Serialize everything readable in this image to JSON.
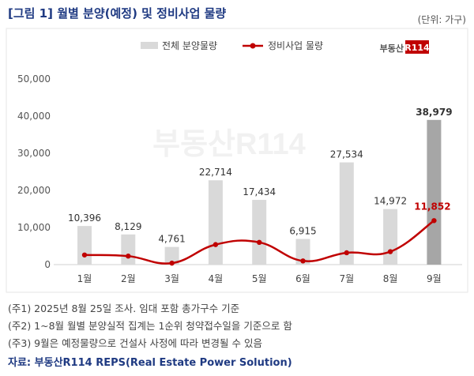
{
  "title": "[그림 1] 월별 분양(예정) 및 정비사업 물량",
  "unit": "(단위: 가구)",
  "logo_text": "부동산R114",
  "watermark_text": "부동산R114",
  "chart_data": {
    "type": "bar",
    "categories": [
      "1월",
      "2월",
      "3월",
      "4월",
      "5월",
      "6월",
      "7월",
      "8월",
      "9월"
    ],
    "series": [
      {
        "name": "전체 분양물량",
        "type": "bar",
        "values": [
          10396,
          8129,
          4761,
          22714,
          17434,
          6915,
          27534,
          14972,
          38979
        ],
        "color": "#d9d9d9",
        "highlight_color": "#a6a6a6"
      },
      {
        "name": "정비사업 물량",
        "type": "line",
        "values": [
          2600,
          2300,
          400,
          5400,
          6000,
          1000,
          3200,
          3500,
          11852
        ],
        "color": "#c00000"
      }
    ],
    "bar_labels": [
      "10,396",
      "8,129",
      "4,761",
      "22,714",
      "17,434",
      "6,915",
      "27,534",
      "14,972",
      "38,979"
    ],
    "line_label": "11,852",
    "yticks": [
      "0",
      "10,000",
      "20,000",
      "30,000",
      "40,000",
      "50,000"
    ],
    "ylim": [
      0,
      50000
    ],
    "legend_position": "top-center"
  },
  "notes": [
    "(주1) 2025년 8월 25일 조사. 임대 포함 총가구수 기준",
    "(주2) 1~8월 월별 분양실적 집계는 1순위 청약접수일을 기준으로 함",
    "(주3) 9월은 예정물량으로 건설사 사정에 따라 변경될 수 있음"
  ],
  "source": "자료: 부동산R114 REPS(Real Estate Power Solution)"
}
